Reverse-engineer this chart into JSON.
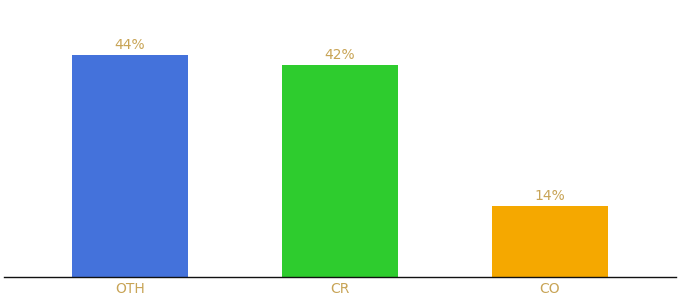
{
  "categories": [
    "OTH",
    "CR",
    "CO"
  ],
  "values": [
    44,
    42,
    14
  ],
  "bar_colors": [
    "#4472db",
    "#2ecc2e",
    "#f5a800"
  ],
  "label_color": "#c8a456",
  "tick_color": "#c8a456",
  "labels": [
    "44%",
    "42%",
    "14%"
  ],
  "background_color": "#ffffff",
  "label_fontsize": 10,
  "tick_fontsize": 10,
  "ylim": [
    0,
    54
  ],
  "bar_width": 0.55
}
